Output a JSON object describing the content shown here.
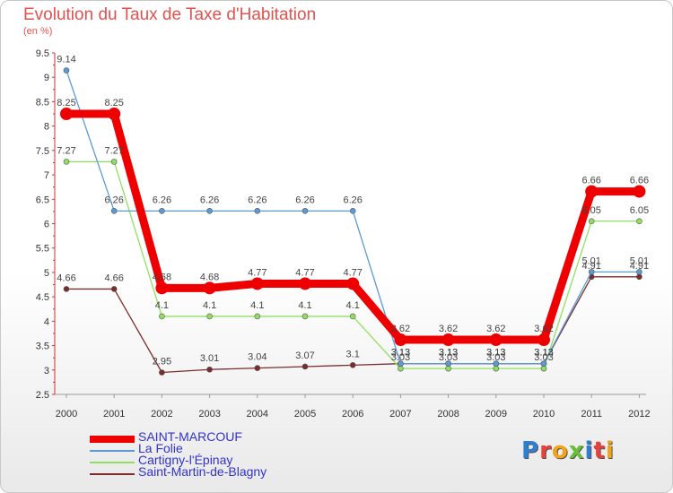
{
  "title": "Evolution du Taux de Taxe d'Habitation",
  "subtitle": "(en %)",
  "logo": {
    "text": "Proxiti",
    "colors": [
      "#2f7fd0",
      "#e8403a",
      "#f2a21b",
      "#6bbf36",
      "#2f7fd0",
      "#e8403a",
      "#f2a21b"
    ]
  },
  "chart_data": {
    "type": "line",
    "title": "Evolution du Taux de Taxe d'Habitation",
    "ylabel": "(en %)",
    "xlabel": "",
    "categories": [
      "2000",
      "2001",
      "2002",
      "2003",
      "2004",
      "2005",
      "2006",
      "2007",
      "2008",
      "2009",
      "2010",
      "2011",
      "2012"
    ],
    "ylim": [
      2.5,
      9.5
    ],
    "yticks": [
      "2.5",
      "3",
      "3.5",
      "4",
      "4.5",
      "5",
      "5.5",
      "6",
      "6.5",
      "7",
      "7.5",
      "8",
      "8.5",
      "9",
      "9.5"
    ],
    "legend_position": "bottom-left",
    "series": [
      {
        "name": "SAINT-MARCOUF",
        "color": "#ee0000",
        "width": "thick",
        "values": [
          8.25,
          8.25,
          4.68,
          4.68,
          4.77,
          4.77,
          4.77,
          3.62,
          3.62,
          3.62,
          3.62,
          6.66,
          6.66
        ],
        "labels": [
          "8.25",
          "8.25",
          "4.68",
          "4.68",
          "4.77",
          "4.77",
          "4.77",
          "3.62",
          "3.62",
          "3.62",
          "3.62",
          "6.66",
          "6.66"
        ]
      },
      {
        "name": "La Folie",
        "color": "#5b9bd5",
        "width": "thin",
        "values": [
          9.14,
          6.26,
          6.26,
          6.26,
          6.26,
          6.26,
          6.26,
          3.13,
          3.13,
          3.13,
          3.13,
          5.01,
          5.01
        ],
        "labels": [
          "9.14",
          "6.26",
          "6.26",
          "6.26",
          "6.26",
          "6.26",
          "6.26",
          "3.13",
          "3.13",
          "3.13",
          "3.13",
          "5.01",
          "5.01"
        ]
      },
      {
        "name": "Cartigny-l'Épinay",
        "color": "#90e060",
        "width": "thin",
        "values": [
          7.27,
          7.27,
          4.1,
          4.1,
          4.1,
          4.1,
          4.1,
          3.03,
          3.03,
          3.03,
          3.03,
          6.05,
          6.05
        ],
        "labels": [
          "7.27",
          "7.27",
          "4.1",
          "4.1",
          "4.1",
          "4.1",
          "4.1",
          "3.03",
          "3.03",
          "3.03",
          "3.03",
          "6.05",
          "6.05"
        ]
      },
      {
        "name": "Saint-Martin-de-Blagny",
        "color": "#7b2d2d",
        "width": "thin",
        "values": [
          4.66,
          4.66,
          2.95,
          3.01,
          3.04,
          3.07,
          3.1,
          3.13,
          3.13,
          3.13,
          3.13,
          4.91,
          4.91
        ],
        "labels": [
          "4.66",
          "4.66",
          "2.95",
          "3.01",
          "3.04",
          "3.07",
          "3.1",
          "3.13",
          "3.13",
          "3.13",
          "3.13",
          "4.91",
          "4.91"
        ]
      }
    ]
  }
}
